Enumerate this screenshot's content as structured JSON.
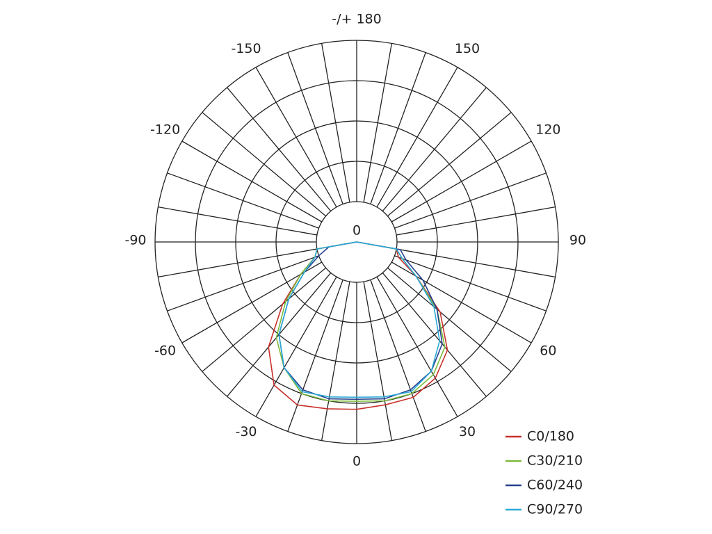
{
  "chart_data": {
    "type": "polar",
    "center_label": "0",
    "rlim": [
      0,
      5
    ],
    "rings": [
      1,
      2,
      3,
      4,
      5
    ],
    "angle_grid_step": 10,
    "angle_ticks": [
      {
        "value": 180,
        "label": "-/+ 180"
      },
      -150,
      -120,
      -90,
      -60,
      -30,
      0,
      30,
      60,
      90,
      120,
      150
    ],
    "x": [
      -90,
      -80,
      -70,
      -60,
      -50,
      -40,
      -30,
      -20,
      -10,
      0,
      10,
      20,
      30,
      40,
      50,
      60,
      70,
      80,
      90
    ],
    "series": [
      {
        "name": "C0/180",
        "color": "#c8312b",
        "values": [
          0,
          1.0,
          1.1,
          1.6,
          2.4,
          3.4,
          4.1,
          4.3,
          4.2,
          4.15,
          4.1,
          4.1,
          3.9,
          3.5,
          2.7,
          1.7,
          1.1,
          1.0,
          0
        ]
      },
      {
        "name": "C30/210",
        "color": "#7dbb3b",
        "values": [
          0,
          1.0,
          1.1,
          1.6,
          2.3,
          3.1,
          3.6,
          4.0,
          4.0,
          3.95,
          4.0,
          4.0,
          3.8,
          3.4,
          2.6,
          1.7,
          1.2,
          1.0,
          0
        ]
      },
      {
        "name": "C60/240",
        "color": "#26418f",
        "values": [
          0,
          0.7,
          1.0,
          1.5,
          2.2,
          3.0,
          3.6,
          3.9,
          3.95,
          3.9,
          3.95,
          3.9,
          3.7,
          3.3,
          2.6,
          1.9,
          1.3,
          1.1,
          0
        ]
      },
      {
        "name": "C90/270",
        "color": "#2ba9d6",
        "values": [
          0,
          1.0,
          1.1,
          1.5,
          2.2,
          3.0,
          3.6,
          3.95,
          3.9,
          3.85,
          3.9,
          3.95,
          3.7,
          3.2,
          2.5,
          1.7,
          1.2,
          1.0,
          0
        ]
      }
    ]
  }
}
